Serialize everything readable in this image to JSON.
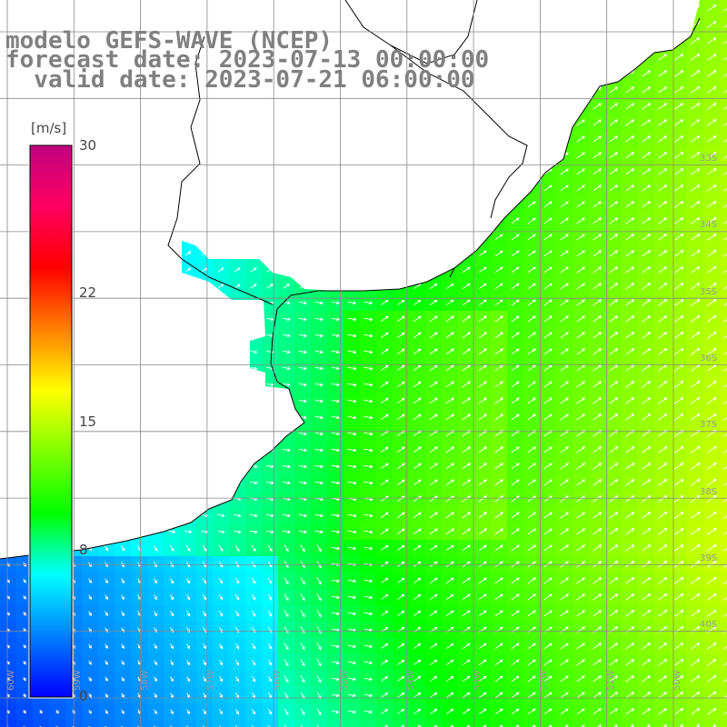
{
  "title": {
    "line1": "modelo GEFS-WAVE (NCEP)",
    "line2": "forecast date: 2023-07-13 00:00:00",
    "line3": "  valid date: 2023-07-21 06:00:00"
  },
  "colorbar": {
    "unit": "[m/s]",
    "min": 0,
    "max": 30,
    "ticks": [
      "30",
      "22",
      "15",
      "8",
      "0"
    ],
    "tick_values": [
      30,
      22,
      15,
      8,
      0
    ],
    "colors": [
      "#0000ff",
      "#0080ff",
      "#00ffff",
      "#00ff00",
      "#80ff00",
      "#ffff00",
      "#ff8000",
      "#ff0000",
      "#ff0060",
      "#c0007f"
    ]
  },
  "map": {
    "field": "wind speed with direction arrows",
    "land_color": "#ffffff",
    "grid": true,
    "right_edge_labels": [
      "33S",
      "34S",
      "35S",
      "36S",
      "37S",
      "38S",
      "39S",
      "40S"
    ],
    "bottom_edge_labels": [
      "60W",
      "59W",
      "58W",
      "57W",
      "56W",
      "55W",
      "54W",
      "53W",
      "52W",
      "51W",
      "50W"
    ]
  }
}
